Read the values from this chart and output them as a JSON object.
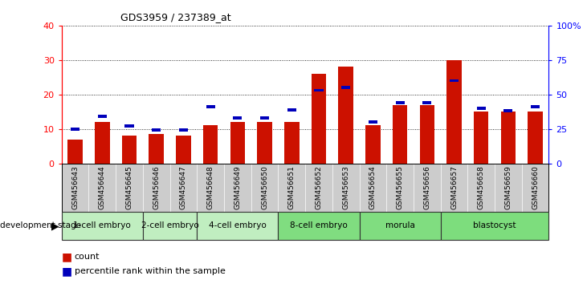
{
  "title": "GDS3959 / 237389_at",
  "samples": [
    "GSM456643",
    "GSM456644",
    "GSM456645",
    "GSM456646",
    "GSM456647",
    "GSM456648",
    "GSM456649",
    "GSM456650",
    "GSM456651",
    "GSM456652",
    "GSM456653",
    "GSM456654",
    "GSM456655",
    "GSM456656",
    "GSM456657",
    "GSM456658",
    "GSM456659",
    "GSM456660"
  ],
  "counts": [
    7,
    12,
    8,
    8.5,
    8,
    11,
    12,
    12,
    12,
    26,
    28,
    11,
    17,
    17,
    30,
    15,
    15,
    15
  ],
  "percentiles": [
    25,
    34,
    27,
    24,
    24,
    41,
    33,
    33,
    39,
    53,
    55,
    30,
    44,
    44,
    60,
    40,
    38,
    41
  ],
  "stages": [
    {
      "label": "1-cell embryo",
      "start": 0,
      "end": 2
    },
    {
      "label": "2-cell embryo",
      "start": 3,
      "end": 4
    },
    {
      "label": "4-cell embryo",
      "start": 5,
      "end": 7
    },
    {
      "label": "8-cell embryo",
      "start": 8,
      "end": 10
    },
    {
      "label": "morula",
      "start": 11,
      "end": 13
    },
    {
      "label": "blastocyst",
      "start": 14,
      "end": 17
    }
  ],
  "stage_fill_colors": [
    "#c0eec0",
    "#c0eec0",
    "#c0eec0",
    "#80dd80",
    "#80dd80",
    "#7ddd7d"
  ],
  "bar_color_red": "#cc1100",
  "bar_color_blue": "#0000bb",
  "ylim_left": [
    0,
    40
  ],
  "ylim_right": [
    0,
    100
  ],
  "yticks_left": [
    0,
    10,
    20,
    30,
    40
  ],
  "yticks_right": [
    0,
    25,
    50,
    75,
    100
  ],
  "ytick_labels_right": [
    "0",
    "25",
    "50",
    "75",
    "100%"
  ],
  "xlabel_bg": "#cccccc",
  "background_color": "#ffffff"
}
